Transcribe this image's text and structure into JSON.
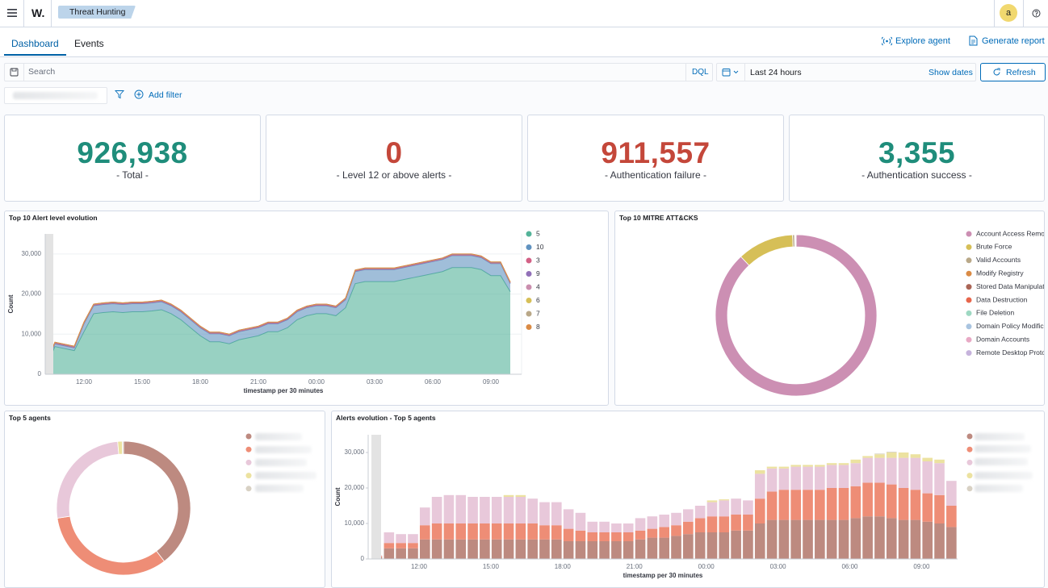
{
  "header": {
    "logo": "W.",
    "breadcrumb": "Threat Hunting",
    "avatar": "a"
  },
  "tabs": [
    "Dashboard",
    "Events"
  ],
  "actions": [
    "Explore agent",
    "Generate report"
  ],
  "search": {
    "placeholder": "Search",
    "language": "DQL",
    "time_range": "Last 24 hours",
    "show_dates": "Show dates",
    "refresh": "Refresh",
    "add_filter": "Add filter"
  },
  "metrics": [
    {
      "value": "926,938",
      "label": "- Total -",
      "color": "#1f8d7b"
    },
    {
      "value": "0",
      "label": "- Level 12 or above alerts -",
      "color": "#c4473a"
    },
    {
      "value": "911,557",
      "label": "- Authentication failure -",
      "color": "#c4473a"
    },
    {
      "value": "3,355",
      "label": "- Authentication success -",
      "color": "#1f8d7b"
    }
  ],
  "chart_data": [
    {
      "type": "area",
      "stacked": true,
      "title": "Top 10 Alert level evolution",
      "x_label": "timestamp per 30 minutes",
      "y_label": "Count",
      "categories": [
        null,
        null,
        null,
        null,
        "12:00",
        null,
        null,
        null,
        null,
        null,
        "15:00",
        null,
        null,
        null,
        null,
        null,
        "18:00",
        null,
        null,
        null,
        null,
        null,
        "21:00",
        null,
        null,
        null,
        null,
        null,
        "00:00",
        null,
        null,
        null,
        null,
        null,
        "03:00",
        null,
        null,
        null,
        null,
        null,
        "06:00",
        null,
        null,
        null,
        null,
        null,
        "09:00",
        null,
        null
      ],
      "ylim": [
        0,
        35000
      ],
      "yticks": [
        0,
        {
          "value": 10000,
          "label": "10,000"
        },
        {
          "value": 20000,
          "label": "20,000"
        },
        {
          "value": 30000,
          "label": "30,000"
        }
      ],
      "grid": true,
      "legend": "right",
      "series": [
        {
          "name": "5",
          "color": "#54b399",
          "values": [
            1300,
            6900,
            6400,
            5900,
            10600,
            15100,
            15400,
            15600,
            15400,
            15600,
            15600,
            15800,
            16100,
            15100,
            13600,
            11600,
            9600,
            8100,
            8100,
            7600,
            8600,
            9100,
            9600,
            10600,
            10600,
            11600,
            13600,
            14600,
            15100,
            15100,
            14600,
            16600,
            22600,
            23100,
            23100,
            23100,
            23100,
            23600,
            24100,
            24600,
            25100,
            25600,
            26600,
            26600,
            26600,
            26100,
            24600,
            24600,
            20600
          ]
        },
        {
          "name": "10",
          "color": "#6092c0",
          "values": [
            300,
            700,
            700,
            700,
            2000,
            2000,
            2000,
            2000,
            2000,
            2000,
            2000,
            2000,
            2000,
            2000,
            2000,
            2000,
            2000,
            2000,
            2000,
            2000,
            2000,
            2000,
            2000,
            2000,
            2000,
            2000,
            2000,
            2000,
            2000,
            2000,
            2000,
            2000,
            3000,
            3000,
            3000,
            3000,
            3000,
            3000,
            3000,
            3000,
            3000,
            3000,
            3000,
            3000,
            3000,
            3000,
            3000,
            3000,
            2000
          ]
        },
        {
          "name": "3",
          "color": "#d36086",
          "values": [
            200,
            200,
            200,
            200,
            200,
            200,
            200,
            200,
            200,
            200,
            200,
            200,
            200,
            200,
            200,
            200,
            200,
            200,
            200,
            200,
            200,
            200,
            200,
            200,
            200,
            200,
            200,
            200,
            200,
            200,
            200,
            200,
            200,
            200,
            200,
            200,
            200,
            200,
            200,
            200,
            200,
            200,
            200,
            200,
            200,
            200,
            200,
            200,
            200
          ]
        },
        {
          "name": "9",
          "color": "#9170b8",
          "values": [
            100,
            100,
            100,
            100,
            100,
            100,
            100,
            100,
            100,
            100,
            100,
            100,
            100,
            100,
            100,
            100,
            100,
            100,
            100,
            100,
            100,
            100,
            100,
            100,
            100,
            100,
            100,
            100,
            100,
            100,
            100,
            100,
            100,
            100,
            100,
            100,
            100,
            100,
            100,
            100,
            100,
            100,
            100,
            100,
            100,
            100,
            100,
            100,
            100
          ]
        },
        {
          "name": "4",
          "color": "#ca8eae",
          "values": [
            50,
            50,
            50,
            50,
            50,
            50,
            50,
            50,
            50,
            50,
            50,
            50,
            50,
            50,
            50,
            50,
            50,
            50,
            50,
            50,
            50,
            50,
            50,
            50,
            50,
            50,
            50,
            50,
            50,
            50,
            50,
            50,
            50,
            50,
            50,
            50,
            50,
            50,
            50,
            50,
            50,
            50,
            50,
            50,
            50,
            50,
            50,
            50,
            50
          ]
        },
        {
          "name": "6",
          "color": "#d6bf57",
          "values": [
            30,
            30,
            30,
            30,
            30,
            30,
            30,
            30,
            30,
            30,
            30,
            30,
            30,
            30,
            30,
            30,
            30,
            30,
            30,
            30,
            30,
            30,
            30,
            30,
            30,
            30,
            30,
            30,
            30,
            30,
            30,
            30,
            30,
            30,
            30,
            30,
            30,
            30,
            30,
            30,
            30,
            30,
            30,
            30,
            30,
            30,
            30,
            30,
            30
          ]
        },
        {
          "name": "7",
          "color": "#b9a888",
          "values": [
            10,
            10,
            10,
            10,
            10,
            10,
            10,
            10,
            10,
            10,
            10,
            10,
            10,
            10,
            10,
            10,
            10,
            10,
            10,
            10,
            10,
            10,
            10,
            10,
            10,
            10,
            10,
            10,
            10,
            10,
            10,
            10,
            10,
            10,
            10,
            10,
            10,
            10,
            10,
            10,
            10,
            10,
            10,
            10,
            10,
            10,
            10,
            10,
            10
          ]
        },
        {
          "name": "8",
          "color": "#da8b45",
          "values": [
            10,
            10,
            10,
            10,
            10,
            10,
            10,
            10,
            10,
            10,
            10,
            10,
            10,
            10,
            10,
            10,
            10,
            10,
            10,
            10,
            10,
            10,
            10,
            10,
            10,
            10,
            10,
            10,
            10,
            10,
            10,
            10,
            10,
            10,
            10,
            10,
            10,
            10,
            10,
            10,
            10,
            10,
            10,
            10,
            10,
            10,
            10,
            10,
            10
          ]
        }
      ]
    },
    {
      "type": "pie",
      "donut": true,
      "title": "Top 10 MITRE ATT&CKS",
      "legend": "right",
      "categories": [
        "Account Access Remo",
        "Brute Force",
        "Valid Accounts",
        "Modify Registry",
        "Stored Data Manipulat",
        "Data Destruction",
        "File Deletion",
        "Domain Policy Modific",
        "Domain Accounts",
        "Remote Desktop Proto"
      ],
      "values": [
        88.0,
        11.3,
        0.4,
        0.1,
        0.05,
        0.05,
        0.03,
        0.03,
        0.02,
        0.02
      ],
      "colors": [
        "#cc8fb3",
        "#d6bf57",
        "#b9a888",
        "#da8b45",
        "#aa6556",
        "#e7664c",
        "#9ed8c2",
        "#a9c4e0",
        "#e8a9c5",
        "#c6b3dc"
      ]
    },
    {
      "type": "pie",
      "donut": true,
      "title": "Top 5 agents",
      "legend": "right",
      "values": [
        39.6,
        33.0,
        26.0,
        1.1,
        0.3
      ],
      "colors": [
        "#bd8a80",
        "#ee8d76",
        "#e8c8da",
        "#ece2a0",
        "#d8d1c4"
      ]
    },
    {
      "type": "bar",
      "stacked": true,
      "title": "Alerts evolution - Top 5 agents",
      "x_label": "timestamp per 30 minutes",
      "y_label": "Count",
      "categories": [
        null,
        null,
        null,
        null,
        "12:00",
        null,
        null,
        null,
        null,
        null,
        "15:00",
        null,
        null,
        null,
        null,
        null,
        "18:00",
        null,
        null,
        null,
        null,
        null,
        "21:00",
        null,
        null,
        null,
        null,
        null,
        "00:00",
        null,
        null,
        null,
        null,
        null,
        "03:00",
        null,
        null,
        null,
        null,
        null,
        "06:00",
        null,
        null,
        null,
        null,
        null,
        "09:00",
        null,
        null
      ],
      "ylim": [
        0,
        35000
      ],
      "yticks": [
        0,
        {
          "value": 10000,
          "label": "10,000"
        },
        {
          "value": 20000,
          "label": "20,000"
        },
        {
          "value": 30000,
          "label": "30,000"
        }
      ],
      "grid": false,
      "legend": "right",
      "series": [
        {
          "color": "#bd8a80",
          "values": [
            500,
            3000,
            3000,
            3000,
            5500,
            5500,
            5500,
            5500,
            5500,
            5500,
            5500,
            5500,
            5500,
            5500,
            5500,
            5500,
            5000,
            5000,
            5000,
            5000,
            5000,
            5000,
            5500,
            6000,
            6000,
            6500,
            7000,
            7500,
            7500,
            7500,
            8000,
            8000,
            10000,
            11000,
            11000,
            11000,
            11000,
            11000,
            11000,
            11000,
            11500,
            12000,
            12000,
            11500,
            11000,
            11000,
            10500,
            10000,
            9000
          ]
        },
        {
          "color": "#ee8d76",
          "values": [
            300,
            1500,
            1500,
            1500,
            4000,
            4500,
            4500,
            4500,
            4500,
            4500,
            4500,
            4500,
            4500,
            4500,
            4000,
            4000,
            3500,
            3000,
            2500,
            2500,
            2500,
            2500,
            2500,
            2500,
            3000,
            3000,
            3500,
            4000,
            4500,
            4500,
            4500,
            4500,
            7000,
            8000,
            8500,
            8500,
            8500,
            8500,
            9000,
            9000,
            9000,
            9500,
            9500,
            9500,
            9000,
            8500,
            8000,
            8000,
            6000
          ]
        },
        {
          "color": "#e8c8da",
          "values": [
            200,
            3000,
            2500,
            2500,
            5000,
            7500,
            8000,
            8000,
            7500,
            7500,
            7500,
            7500,
            7500,
            7000,
            6500,
            6500,
            5500,
            5000,
            3000,
            3000,
            2500,
            2500,
            3500,
            3500,
            3500,
            3500,
            3500,
            3500,
            4000,
            4500,
            4500,
            4000,
            7000,
            6500,
            6000,
            6500,
            6500,
            6500,
            6500,
            6500,
            6500,
            7000,
            7000,
            7500,
            8500,
            9000,
            9000,
            9000,
            7000
          ]
        },
        {
          "color": "#ece2a0",
          "values": [
            0,
            0,
            0,
            0,
            0,
            0,
            0,
            0,
            0,
            0,
            0,
            500,
            500,
            0,
            0,
            0,
            0,
            0,
            0,
            0,
            0,
            0,
            0,
            0,
            0,
            0,
            0,
            0,
            500,
            300,
            0,
            0,
            1000,
            500,
            500,
            500,
            500,
            500,
            500,
            500,
            1000,
            500,
            1000,
            1500,
            1500,
            1000,
            1000,
            1000,
            0
          ]
        },
        {
          "color": "#d8d1c4",
          "values": [
            0,
            0,
            0,
            0,
            0,
            0,
            0,
            0,
            0,
            0,
            0,
            0,
            0,
            0,
            0,
            0,
            0,
            0,
            0,
            0,
            0,
            0,
            0,
            0,
            0,
            0,
            0,
            0,
            0,
            0,
            0,
            0,
            0,
            0,
            0,
            0,
            0,
            0,
            0,
            0,
            0,
            0,
            200,
            200,
            0,
            0,
            0,
            0,
            0
          ]
        }
      ]
    }
  ]
}
